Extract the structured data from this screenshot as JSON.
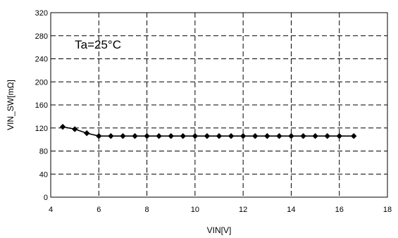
{
  "chart_data": {
    "type": "line",
    "xlabel": "VIN[V]",
    "ylabel": "VIN_SW[mΩ]",
    "annotation": "Ta=25°C",
    "xlim": [
      4,
      18
    ],
    "ylim": [
      0,
      320
    ],
    "xticks": [
      4,
      6,
      8,
      10,
      12,
      14,
      16,
      18
    ],
    "yticks": [
      0,
      40,
      80,
      120,
      160,
      200,
      240,
      280,
      320
    ],
    "grid": true,
    "grid_style": "dashed",
    "marker": "diamond",
    "line_color": "#000000",
    "series": [
      {
        "x": [
          4.5,
          5.0,
          5.5,
          6.0,
          6.5,
          7.0,
          7.5,
          8.0,
          8.5,
          9.0,
          9.5,
          10.0,
          10.5,
          11.0,
          11.5,
          12.0,
          12.5,
          13.0,
          13.5,
          14.0,
          14.5,
          15.0,
          15.5,
          16.0,
          16.6
        ],
        "values": [
          122,
          118,
          111,
          106,
          106,
          106,
          106,
          106,
          106,
          106,
          106,
          106,
          106,
          106,
          106,
          106,
          106,
          106,
          106,
          106,
          106,
          106,
          106,
          106,
          106
        ]
      }
    ]
  }
}
